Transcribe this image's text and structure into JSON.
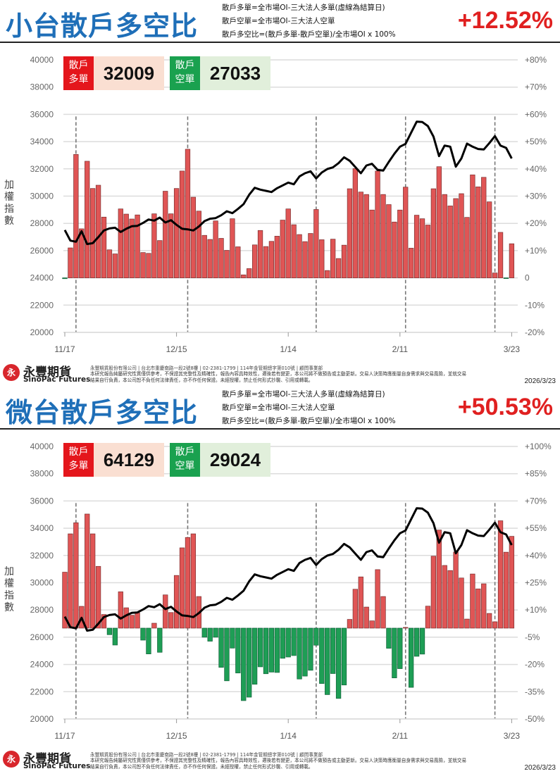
{
  "colors": {
    "title": "#1f6fb8",
    "percent": "#e02020",
    "bar_positive": "#e05555",
    "bar_negative": "#1e9e55",
    "line": "#000000"
  },
  "definitions": [
    "散戶多單=全市場OI-三大法人多單(虛線為結算日)",
    "散戶空單=全市場OI-三大法人空單",
    "散戶多空比=(散戶多單-散戶空單)/全市場OI x 100%"
  ],
  "badges": {
    "long_label": [
      "散戶",
      "多單"
    ],
    "short_label": [
      "散戶",
      "空單"
    ]
  },
  "yaxis_label": [
    "加",
    "權",
    "指",
    "數"
  ],
  "footer": {
    "brand": "永豐期貨",
    "brand_en": "SinoPac Futures",
    "logo_text": "永",
    "company": "永豐期貨股份有限公司 | 台北市重慶南路一段2號8樓 | 02-2381-1799 | 114年金管期總字第010號 | 顧問事業部",
    "disclaimer": "本研究報告純屬研究性質僅供參考，不保證其完整性及精確性，報告內容具時效性，邇後若有變更，本公司將不做預告或主動更新。交易人決策時應衡量自身需求與交易風險，並就交易結果自行負責，本公司恕不負任何法律責任，亦不作任何保證。未經授權，禁止任何形式抄襲、引用或轉載。",
    "date": "2026/3/23"
  },
  "chart_data": [
    {
      "type": "bar+line",
      "title": "小台散戶多空比",
      "latest_ratio": "+12.52%",
      "retail_long": "32009",
      "retail_short": "27033",
      "xticks": [
        "11/17",
        "12/15",
        "1/14",
        "2/11",
        "3/23"
      ],
      "xtick_index": [
        0,
        20,
        40,
        60,
        80
      ],
      "left_axis": {
        "label": "加權指數",
        "min": 20000,
        "max": 40000,
        "ticks": [
          "40000",
          "38000",
          "36000",
          "34000",
          "32000",
          "30000",
          "28000",
          "26000",
          "24000",
          "22000",
          "20000"
        ]
      },
      "right_axis": {
        "min": -20,
        "max": 80,
        "ticks": [
          "+80%",
          "+70%",
          "+60%",
          "+50%",
          "+40%",
          "+30%",
          "+20%",
          "+10%",
          "0",
          "-10%",
          "-20%"
        ]
      },
      "settlement_index": [
        2,
        22,
        45,
        61,
        77
      ],
      "ratio_pct": [
        -0.3,
        11.0,
        45.3,
        18.0,
        42.8,
        32.8,
        34.0,
        22.3,
        10.3,
        8.8,
        25.3,
        23.4,
        21.6,
        23.1,
        9.3,
        9.0,
        23.5,
        13.7,
        31.8,
        23.5,
        32.8,
        39.2,
        47.2,
        29.6,
        24.5,
        15.6,
        14.1,
        20.9,
        14.5,
        10.1,
        21.7,
        11.4,
        1.1,
        3.4,
        12.1,
        17.4,
        11.5,
        13.4,
        15.3,
        21.2,
        25.3,
        19.5,
        15.9,
        13.3,
        16.3,
        25.1,
        14.0,
        2.7,
        14.2,
        7.1,
        12.0,
        32.7,
        40.1,
        31.5,
        30.6,
        24.9,
        39.2,
        30.6,
        26.9,
        20.5,
        24.9,
        33.3,
        10.9,
        23.0,
        21.7,
        19.4,
        32.7,
        40.8,
        30.6,
        26.4,
        29.1,
        30.9,
        22.2,
        37.8,
        33.4,
        36.9,
        27.9,
        1.8,
        16.7,
        -0.2,
        12.52
      ],
      "index": [
        27510,
        26734,
        26650,
        27425,
        26480,
        26550,
        26990,
        27480,
        27630,
        27680,
        27370,
        27600,
        27790,
        27820,
        28030,
        28285,
        28200,
        28425,
        28060,
        28230,
        27890,
        27600,
        27560,
        27480,
        27770,
        28165,
        28340,
        28390,
        28595,
        28890,
        28750,
        29060,
        29410,
        30100,
        30610,
        30475,
        30390,
        30300,
        30580,
        30785,
        30990,
        30870,
        31440,
        31680,
        31820,
        31300,
        31730,
        31990,
        32110,
        32420,
        32850,
        32595,
        32130,
        31680,
        32250,
        32370,
        31920,
        31870,
        32505,
        33110,
        33630,
        33835,
        34660,
        35470,
        35435,
        35140,
        34365,
        32935,
        33710,
        33630,
        32160,
        32765,
        33855,
        33630,
        33455,
        33420,
        33890,
        34405,
        33710,
        33540,
        32765
      ]
    },
    {
      "type": "bar+line",
      "title": "微台散戶多空比",
      "latest_ratio": "+50.53%",
      "retail_long": "64129",
      "retail_short": "29024",
      "xticks": [
        "11/17",
        "12/15",
        "1/14",
        "2/11",
        "3/23"
      ],
      "xtick_index": [
        0,
        20,
        40,
        60,
        80
      ],
      "left_axis": {
        "label": "加權指數",
        "min": 20000,
        "max": 40000,
        "ticks": [
          "40000",
          "38000",
          "36000",
          "34000",
          "32000",
          "30000",
          "28000",
          "26000",
          "24000",
          "22000",
          "20000"
        ]
      },
      "right_axis": {
        "min": -50,
        "max": 100,
        "ticks": [
          "+100%",
          "+85%",
          "+70%",
          "+55%",
          "+40%",
          "+25%",
          "+10%",
          "-5%",
          "-20%",
          "-35%",
          "-50%"
        ]
      },
      "settlement_index": [
        2,
        22,
        45,
        61,
        77
      ],
      "ratio_pct": [
        30.8,
        51.9,
        58.0,
        12.0,
        62.8,
        51.9,
        34.0,
        7.5,
        -3.6,
        -9.3,
        20.0,
        11.2,
        7.1,
        8.4,
        -6.6,
        -14.2,
        2.7,
        -13.3,
        18.3,
        8.6,
        29.0,
        44.2,
        49.9,
        51.9,
        17.4,
        -5.0,
        -7.2,
        -5.0,
        -21.6,
        -29.0,
        -11.0,
        -24.7,
        -39.9,
        -38.0,
        -30.9,
        -21.3,
        -25.1,
        -24.2,
        -24.4,
        -16.6,
        -15.9,
        -15.1,
        -28.0,
        -26.4,
        -23.2,
        -9.4,
        -30.5,
        -36.6,
        -25.0,
        -38.7,
        -31.3,
        4.8,
        21.4,
        28.2,
        11.6,
        4.0,
        32.2,
        17.4,
        -11.1,
        -27.4,
        -22.3,
        0.4,
        -32.6,
        -15.5,
        -14.3,
        12.1,
        39.6,
        54.0,
        34.5,
        31.7,
        41.9,
        27.6,
        5.0,
        29.8,
        21.6,
        24.4,
        8.1,
        3.5,
        59.1,
        41.8,
        50.53
      ],
      "index": [
        27510,
        26734,
        26650,
        27425,
        26480,
        26550,
        26990,
        27480,
        27630,
        27680,
        27370,
        27600,
        27790,
        27820,
        28030,
        28285,
        28200,
        28425,
        28060,
        28230,
        27890,
        27600,
        27560,
        27480,
        27770,
        28165,
        28340,
        28390,
        28595,
        28890,
        28750,
        29060,
        29410,
        30100,
        30610,
        30475,
        30390,
        30300,
        30580,
        30785,
        30990,
        30870,
        31440,
        31680,
        31820,
        31300,
        31730,
        31990,
        32110,
        32420,
        32850,
        32595,
        32130,
        31680,
        32250,
        32370,
        31920,
        31870,
        32505,
        33110,
        33630,
        33835,
        34660,
        35470,
        35435,
        35140,
        34365,
        32935,
        33710,
        33630,
        32160,
        32765,
        33855,
        33630,
        33455,
        33420,
        33890,
        34405,
        33710,
        33540,
        32765
      ]
    }
  ]
}
